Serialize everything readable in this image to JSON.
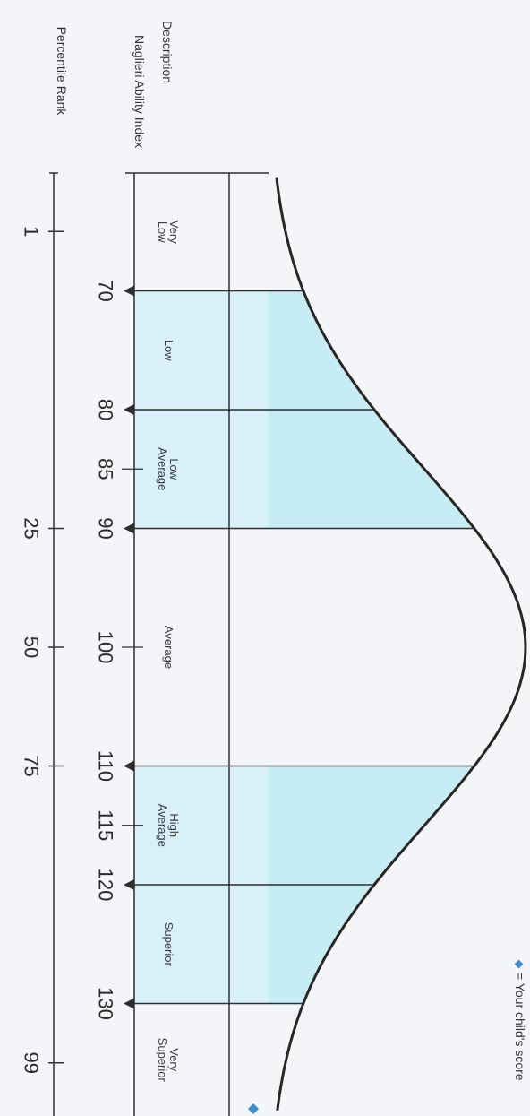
{
  "headers": {
    "description": "Description",
    "naglieri_index": "Naglieri Ability Index",
    "percentile_rank": "Percentile Rank"
  },
  "categories": [
    {
      "label_lines": [
        "Very",
        "Low"
      ],
      "from": 55,
      "to": 70,
      "shaded": false
    },
    {
      "label_lines": [
        "Low"
      ],
      "from": 70,
      "to": 80,
      "shaded": true
    },
    {
      "label_lines": [
        "Low",
        "Average"
      ],
      "from": 80,
      "to": 90,
      "shaded": true
    },
    {
      "label_lines": [
        "Average"
      ],
      "from": 90,
      "to": 110,
      "shaded": false
    },
    {
      "label_lines": [
        "High",
        "Average"
      ],
      "from": 110,
      "to": 120,
      "shaded": true
    },
    {
      "label_lines": [
        "Superior"
      ],
      "from": 120,
      "to": 130,
      "shaded": true
    },
    {
      "label_lines": [
        "Very",
        "Superior"
      ],
      "from": 130,
      "to": 145,
      "shaded": false
    }
  ],
  "index_ticks": [
    {
      "label": "70",
      "value": 70,
      "arrow": true
    },
    {
      "label": "80",
      "value": 80,
      "arrow": true
    },
    {
      "label": "85",
      "value": 85,
      "arrow": false
    },
    {
      "label": "90",
      "value": 90,
      "arrow": true
    },
    {
      "label": "100",
      "value": 100,
      "arrow": false
    },
    {
      "label": "110",
      "value": 110,
      "arrow": true
    },
    {
      "label": "115",
      "value": 115,
      "arrow": false
    },
    {
      "label": "120",
      "value": 120,
      "arrow": true
    },
    {
      "label": "130",
      "value": 130,
      "arrow": true
    }
  ],
  "percentile_ticks": [
    {
      "label": "1",
      "value": 65
    },
    {
      "label": "25",
      "value": 90
    },
    {
      "label": "50",
      "value": 100
    },
    {
      "label": "75",
      "value": 110
    },
    {
      "label": "99",
      "value": 135
    }
  ],
  "legend": {
    "text": "= Your child's score",
    "marker_color": "#3a8fd0"
  },
  "colors": {
    "band_fill": "#d8f0f8",
    "curve_fill": "#c6ecf6",
    "line": "#2e2e2e",
    "curve": "#2b2522"
  }
}
